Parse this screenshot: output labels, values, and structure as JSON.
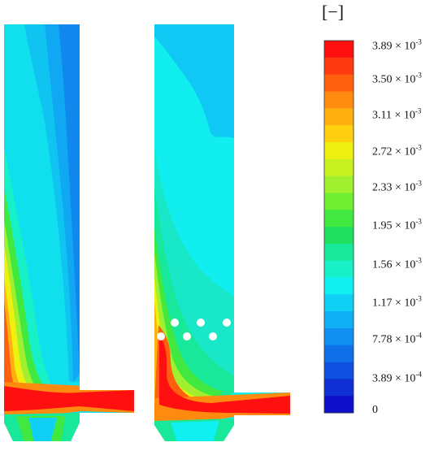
{
  "colorbar": {
    "unit": "[−]",
    "labels": [
      {
        "mantissa": "3.89 × 10",
        "exp": "-3"
      },
      {
        "mantissa": "3.50 × 10",
        "exp": "-3"
      },
      {
        "mantissa": "3.11 × 10",
        "exp": "-3"
      },
      {
        "mantissa": "2.72 × 10",
        "exp": "-3"
      },
      {
        "mantissa": "2.33 × 10",
        "exp": "-3"
      },
      {
        "mantissa": "1.95 × 10",
        "exp": "-3"
      },
      {
        "mantissa": "1.56 × 10",
        "exp": "-3"
      },
      {
        "mantissa": "1.17 × 10",
        "exp": "-3"
      },
      {
        "mantissa": "7.78 × 10",
        "exp": "-4"
      },
      {
        "mantissa": "3.89 × 10",
        "exp": "-4"
      },
      {
        "mantissa": "0",
        "exp": ""
      }
    ],
    "colors_top_to_bottom": [
      "#ff1010",
      "#ff3a10",
      "#ff6010",
      "#ff8a10",
      "#ffb010",
      "#ffd010",
      "#f0f010",
      "#c8f020",
      "#a0f030",
      "#70ee30",
      "#40e840",
      "#20e060",
      "#18e89a",
      "#18f0c8",
      "#10f0f0",
      "#10d0f5",
      "#10b0f5",
      "#1090f0",
      "#1070ea",
      "#1050e0",
      "#1030d5",
      "#1010cc"
    ]
  },
  "panels": {
    "left": {
      "name": "without-injectors"
    },
    "right": {
      "name": "with-injectors",
      "injector_count": 7
    }
  }
}
